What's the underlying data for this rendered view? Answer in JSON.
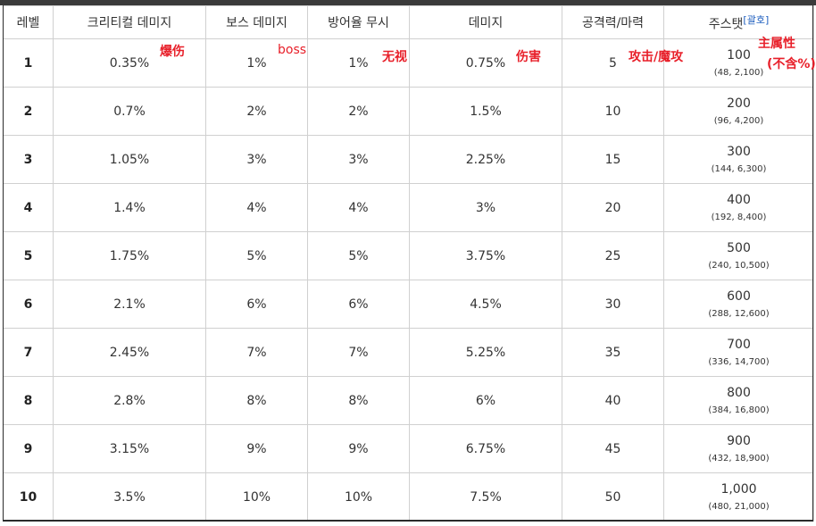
{
  "headers": [
    "레벨",
    "크리티컬 데미지",
    "보스 데미지",
    "방어율 무시",
    "데미지",
    "공격력/마력",
    "주스탯"
  ],
  "stat_sup": "[괄호]",
  "rows": [
    {
      "level": "1",
      "crit": "0.35%",
      "boss": "1%",
      "ignore": "1%",
      "dmg": "0.75%",
      "atk": "5",
      "stat": "100",
      "stat_sub": "(48, 2,100)"
    },
    {
      "level": "2",
      "crit": "0.7%",
      "boss": "2%",
      "ignore": "2%",
      "dmg": "1.5%",
      "atk": "10",
      "stat": "200",
      "stat_sub": "(96, 4,200)"
    },
    {
      "level": "3",
      "crit": "1.05%",
      "boss": "3%",
      "ignore": "3%",
      "dmg": "2.25%",
      "atk": "15",
      "stat": "300",
      "stat_sub": "(144, 6,300)"
    },
    {
      "level": "4",
      "crit": "1.4%",
      "boss": "4%",
      "ignore": "4%",
      "dmg": "3%",
      "atk": "20",
      "stat": "400",
      "stat_sub": "(192, 8,400)"
    },
    {
      "level": "5",
      "crit": "1.75%",
      "boss": "5%",
      "ignore": "5%",
      "dmg": "3.75%",
      "atk": "25",
      "stat": "500",
      "stat_sub": "(240, 10,500)"
    },
    {
      "level": "6",
      "crit": "2.1%",
      "boss": "6%",
      "ignore": "6%",
      "dmg": "4.5%",
      "atk": "30",
      "stat": "600",
      "stat_sub": "(288, 12,600)"
    },
    {
      "level": "7",
      "crit": "2.45%",
      "boss": "7%",
      "ignore": "7%",
      "dmg": "5.25%",
      "atk": "35",
      "stat": "700",
      "stat_sub": "(336, 14,700)"
    },
    {
      "level": "8",
      "crit": "2.8%",
      "boss": "8%",
      "ignore": "8%",
      "dmg": "6%",
      "atk": "40",
      "stat": "800",
      "stat_sub": "(384, 16,800)"
    },
    {
      "level": "9",
      "crit": "3.15%",
      "boss": "9%",
      "ignore": "9%",
      "dmg": "6.75%",
      "atk": "45",
      "stat": "900",
      "stat_sub": "(432, 18,900)"
    },
    {
      "level": "10",
      "crit": "3.5%",
      "boss": "10%",
      "ignore": "10%",
      "dmg": "7.5%",
      "atk": "50",
      "stat": "1,000",
      "stat_sub": "(480, 21,000)"
    }
  ],
  "annotations": {
    "crit": "爆伤",
    "boss": "boss",
    "ignore": "无视",
    "dmg": "伤害",
    "atk": "攻击/魔攻",
    "stat_line1": "主属性",
    "stat_line2": "(不含%)"
  },
  "colors": {
    "annotation": "#e8202a",
    "border": "#d0d0d0",
    "link": "#1f5fbf"
  }
}
